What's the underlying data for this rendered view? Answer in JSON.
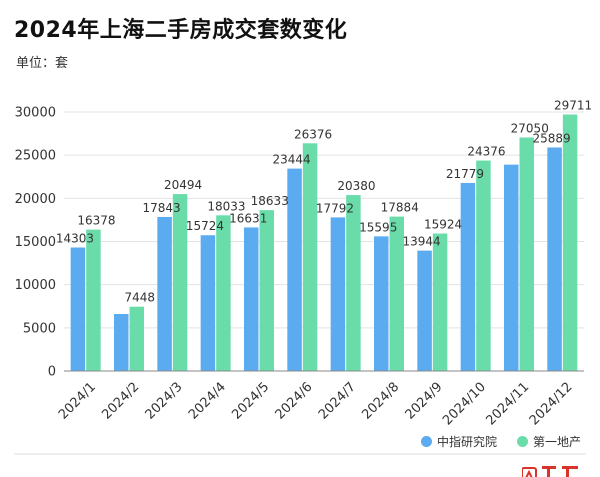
{
  "title": "2024年上海二手房成交套数变化",
  "unit_label": "单位：套",
  "chart_data": {
    "type": "bar",
    "title": "2024年上海二手房成交套数变化",
    "ylabel": "",
    "xlabel": "",
    "ylim": [
      0,
      30000
    ],
    "yticks": [
      0,
      5000,
      10000,
      15000,
      20000,
      25000,
      30000
    ],
    "grid": true,
    "legend_position": "bottom-right",
    "categories": [
      "2024/1",
      "2024/2",
      "2024/3",
      "2024/4",
      "2024/5",
      "2024/6",
      "2024/7",
      "2024/8",
      "2024/9",
      "2024/10",
      "2024/11",
      "2024/12"
    ],
    "series": [
      {
        "name": "中指研究院",
        "color": "#5aabf0",
        "values": [
          14303,
          6600,
          17843,
          15724,
          16631,
          23444,
          17792,
          15595,
          13944,
          21779,
          23900,
          25889
        ],
        "labels": [
          "14303",
          null,
          "17843",
          "15724",
          "16631",
          "23444",
          "17792",
          "15595",
          "13944",
          "21779",
          null,
          "25889"
        ]
      },
      {
        "name": "第一地产",
        "color": "#6adcaa",
        "values": [
          16378,
          7448,
          20494,
          18033,
          18633,
          26376,
          20380,
          17884,
          15924,
          24376,
          27050,
          29711
        ],
        "labels": [
          "16378",
          "7448",
          "20494",
          "18033",
          "18633",
          "26376",
          "20380",
          "17884",
          "15924",
          "24376",
          "27050",
          "29711"
        ]
      }
    ]
  },
  "logo": {
    "text": "上观",
    "color": "#d9342b"
  }
}
